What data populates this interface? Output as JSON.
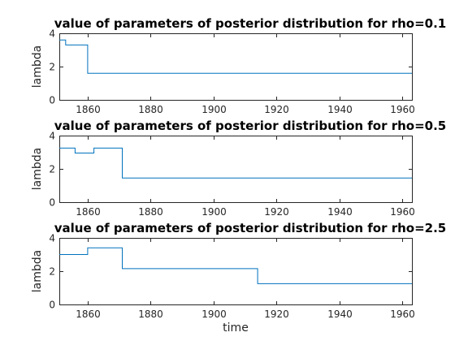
{
  "chart_data": [
    {
      "type": "line",
      "title": "value of parameters of posterior distribution for rho=0.1",
      "ylabel": "lambda",
      "xlabel": "",
      "xlim": [
        1851,
        1963
      ],
      "ylim": [
        0,
        4
      ],
      "xticks": [
        "1860",
        "1880",
        "1900",
        "1920",
        "1940",
        "1960"
      ],
      "yticks": [
        "0",
        "2",
        "4"
      ],
      "x": [
        1851,
        1853,
        1860,
        1963
      ],
      "y": [
        3.6,
        3.3,
        1.6,
        1.6
      ],
      "steps": [
        [
          1851,
          1853,
          3.6
        ],
        [
          1853,
          1860,
          3.3
        ],
        [
          1860,
          1963,
          1.6
        ]
      ]
    },
    {
      "type": "line",
      "title": "value of parameters of posterior distribution for rho=0.5",
      "ylabel": "lambda",
      "xlabel": "",
      "xlim": [
        1851,
        1963
      ],
      "ylim": [
        0,
        4
      ],
      "xticks": [
        "1860",
        "1880",
        "1900",
        "1920",
        "1940",
        "1960"
      ],
      "yticks": [
        "0",
        "2",
        "4"
      ],
      "x": [
        1851,
        1856,
        1862,
        1871,
        1963
      ],
      "y": [
        3.25,
        2.95,
        3.25,
        1.45,
        1.45
      ],
      "steps": [
        [
          1851,
          1856,
          3.25
        ],
        [
          1856,
          1862,
          2.95
        ],
        [
          1862,
          1871,
          3.25
        ],
        [
          1871,
          1963,
          1.45
        ]
      ]
    },
    {
      "type": "line",
      "title": "value of parameters of posterior distribution for rho=2.5",
      "ylabel": "lambda",
      "xlabel": "time",
      "xlim": [
        1851,
        1963
      ],
      "ylim": [
        0,
        4
      ],
      "xticks": [
        "1860",
        "1880",
        "1900",
        "1920",
        "1940",
        "1960"
      ],
      "yticks": [
        "0",
        "2",
        "4"
      ],
      "x": [
        1851,
        1860,
        1871,
        1914,
        1963
      ],
      "y": [
        3.0,
        3.4,
        2.15,
        1.25,
        1.25
      ],
      "steps": [
        [
          1851,
          1860,
          3.0
        ],
        [
          1860,
          1871,
          3.4
        ],
        [
          1871,
          1914,
          2.15
        ],
        [
          1914,
          1963,
          1.25
        ]
      ]
    }
  ],
  "colors": {
    "series": "#0072bd",
    "axes": "#262626"
  }
}
